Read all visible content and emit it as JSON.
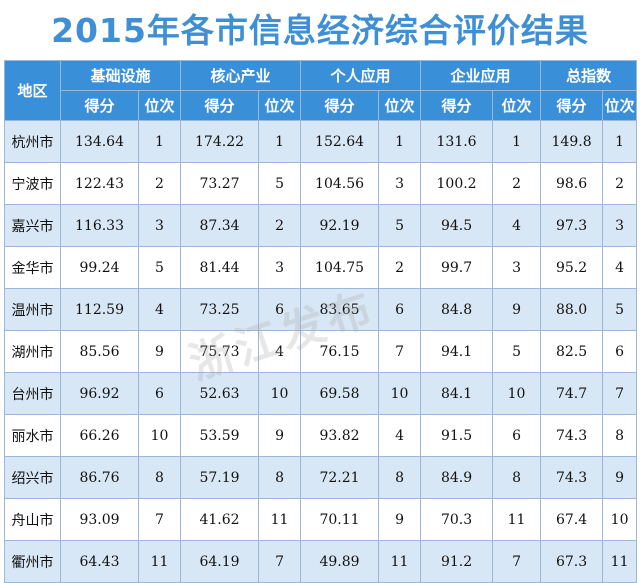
{
  "title": "2015年各市信息经济综合评价结果",
  "headers": {
    "region": "地区",
    "groups": [
      "基础设施",
      "核心产业",
      "个人应用",
      "企业应用",
      "总指数"
    ],
    "sub_score": "得分",
    "sub_rank": "位次"
  },
  "rows": [
    {
      "city": "杭州市",
      "vals": [
        "134.64",
        "1",
        "174.22",
        "1",
        "152.64",
        "1",
        "131.6",
        "1",
        "149.8",
        "1"
      ]
    },
    {
      "city": "宁波市",
      "vals": [
        "122.43",
        "2",
        "73.27",
        "5",
        "104.56",
        "3",
        "100.2",
        "2",
        "98.6",
        "2"
      ]
    },
    {
      "city": "嘉兴市",
      "vals": [
        "116.33",
        "3",
        "87.34",
        "2",
        "92.19",
        "5",
        "94.5",
        "4",
        "97.3",
        "3"
      ]
    },
    {
      "city": "金华市",
      "vals": [
        "99.24",
        "5",
        "81.44",
        "3",
        "104.75",
        "2",
        "99.7",
        "3",
        "95.2",
        "4"
      ]
    },
    {
      "city": "温州市",
      "vals": [
        "112.59",
        "4",
        "73.25",
        "6",
        "83.65",
        "6",
        "84.8",
        "9",
        "88.0",
        "5"
      ]
    },
    {
      "city": "湖州市",
      "vals": [
        "85.56",
        "9",
        "75.73",
        "4",
        "76.15",
        "7",
        "94.1",
        "5",
        "82.5",
        "6"
      ]
    },
    {
      "city": "台州市",
      "vals": [
        "96.92",
        "6",
        "52.63",
        "10",
        "69.58",
        "10",
        "84.1",
        "10",
        "74.7",
        "7"
      ]
    },
    {
      "city": "丽水市",
      "vals": [
        "66.26",
        "10",
        "53.59",
        "9",
        "93.82",
        "4",
        "91.5",
        "6",
        "74.3",
        "8"
      ]
    },
    {
      "city": "绍兴市",
      "vals": [
        "86.76",
        "8",
        "57.19",
        "8",
        "72.21",
        "8",
        "84.9",
        "8",
        "74.3",
        "9"
      ]
    },
    {
      "city": "舟山市",
      "vals": [
        "93.09",
        "7",
        "41.62",
        "11",
        "70.11",
        "9",
        "70.3",
        "11",
        "67.4",
        "10"
      ]
    },
    {
      "city": "衢州市",
      "vals": [
        "64.43",
        "11",
        "64.19",
        "7",
        "49.89",
        "11",
        "91.2",
        "7",
        "67.3",
        "11"
      ]
    }
  ],
  "watermark": "浙江发布"
}
